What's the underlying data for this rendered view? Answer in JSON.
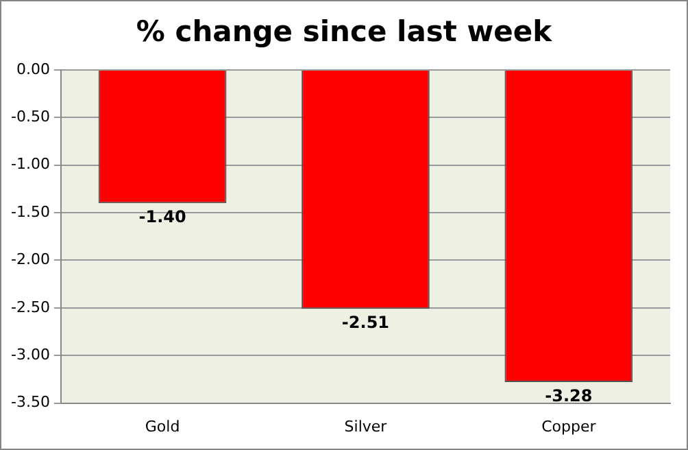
{
  "chart_data": {
    "type": "bar",
    "title": "% change since last week",
    "categories": [
      "Gold",
      "Silver",
      "Copper"
    ],
    "values": [
      -1.4,
      -2.51,
      -3.28
    ],
    "color": "#ff0000",
    "value_labels": [
      "-1.40",
      "-2.51",
      "-3.28"
    ],
    "ylim": [
      -3.5,
      0
    ],
    "yticks": [
      {
        "value": 0,
        "label": "0.00"
      },
      {
        "value": -0.5,
        "label": "-0.50"
      },
      {
        "value": -1,
        "label": "-1.00"
      },
      {
        "value": -1.5,
        "label": "-1.50"
      },
      {
        "value": -2,
        "label": "-2.00"
      },
      {
        "value": -2.5,
        "label": "-2.50"
      },
      {
        "value": -3,
        "label": "-3.00"
      },
      {
        "value": -3.5,
        "label": "-3.50"
      }
    ],
    "grid": "y",
    "legend": false
  }
}
